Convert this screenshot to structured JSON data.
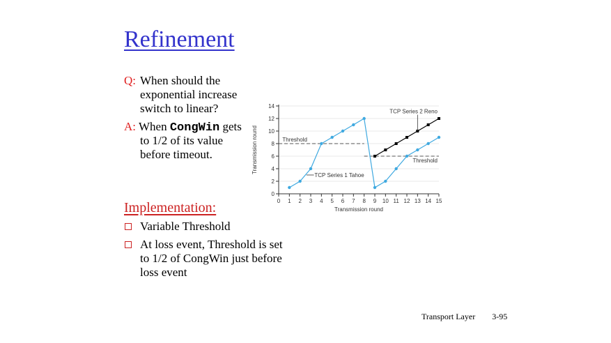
{
  "slide": {
    "title": "Refinement",
    "q_label": "Q:",
    "q_lines": [
      "When should the",
      "exponential increase",
      "switch to linear?"
    ],
    "a_label": "A:",
    "a_pre": "When",
    "a_code": "CongWin",
    "a_post": "gets",
    "a_lines": [
      "to 1/2 of its value",
      "before timeout."
    ],
    "impl_heading": "Implementation:",
    "bullets": [
      {
        "lines": [
          "Variable Threshold"
        ]
      },
      {
        "lines": [
          "At loss event, Threshold is set",
          "to 1/2 of CongWin just before",
          "loss event"
        ]
      }
    ],
    "footer_left": "Transport Layer",
    "footer_right": "3-95"
  },
  "colors": {
    "title": "#3333cc",
    "red": "#e02020",
    "tahoe": "#3fa9e0",
    "reno": "#000000"
  },
  "chart_data": {
    "type": "line",
    "xlabel": "Transmission round",
    "ylabel": "Transmission round",
    "xlim": [
      0,
      15
    ],
    "ylim": [
      0,
      14
    ],
    "xticks": [
      0,
      1,
      2,
      3,
      4,
      5,
      6,
      7,
      8,
      9,
      10,
      11,
      12,
      13,
      14,
      15
    ],
    "yticks": [
      0,
      2,
      4,
      6,
      8,
      10,
      12,
      14
    ],
    "series": [
      {
        "name": "TCP Series 1 Tahoe",
        "x": [
          1,
          2,
          3,
          4,
          5,
          6,
          7,
          8,
          9,
          10,
          11,
          12,
          13,
          14,
          15
        ],
        "y": [
          1,
          2,
          4,
          8,
          9,
          10,
          11,
          12,
          1,
          2,
          4,
          6,
          7,
          8,
          9
        ]
      },
      {
        "name": "TCP Series 2 Reno",
        "x": [
          9,
          10,
          11,
          12,
          13,
          14,
          15
        ],
        "y": [
          6,
          7,
          8,
          9,
          10,
          11,
          12
        ]
      }
    ],
    "thresholds": [
      {
        "label": "Threshold",
        "y": 8,
        "x_from": 0,
        "x_to": 8
      },
      {
        "label": "Threshold",
        "y": 6,
        "x_from": 8,
        "x_to": 15
      }
    ]
  }
}
